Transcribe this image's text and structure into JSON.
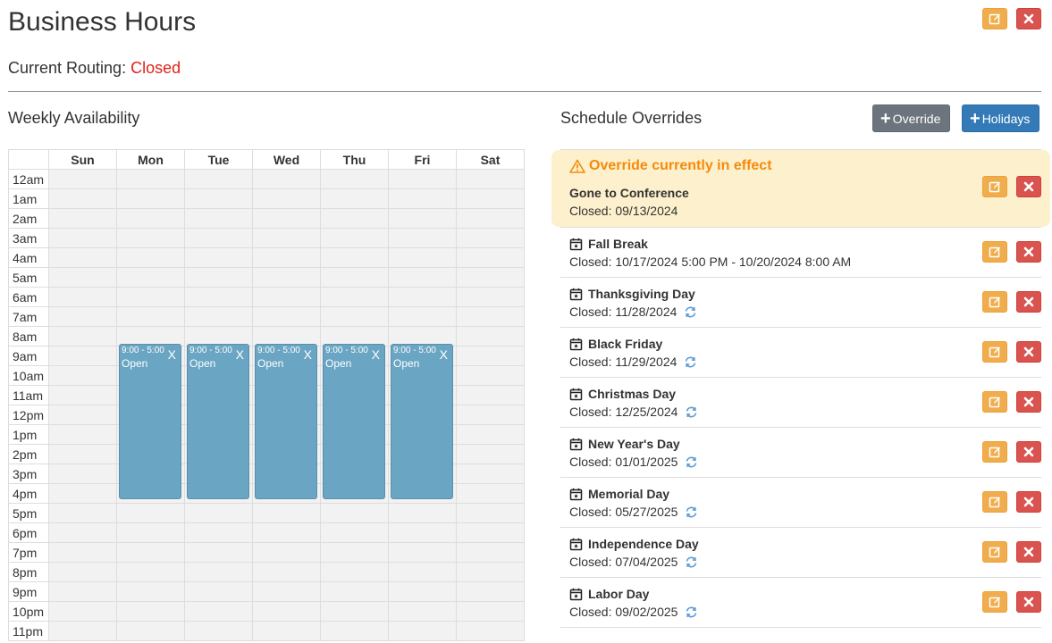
{
  "header": {
    "title": "Business Hours"
  },
  "routing": {
    "label": "Current Routing:",
    "status": "Closed"
  },
  "weekly": {
    "title": "Weekly Availability",
    "days": [
      "Sun",
      "Mon",
      "Tue",
      "Wed",
      "Thu",
      "Fri",
      "Sat"
    ],
    "hours": [
      "12am",
      "1am",
      "2am",
      "3am",
      "4am",
      "5am",
      "6am",
      "7am",
      "8am",
      "9am",
      "10am",
      "11am",
      "12pm",
      "1pm",
      "2pm",
      "3pm",
      "4pm",
      "5pm",
      "6pm",
      "7pm",
      "8pm",
      "9pm",
      "10pm",
      "11pm"
    ],
    "events": [
      {
        "day": "Mon",
        "time": "9:00 - 5:00",
        "label": "Open",
        "remove": "X"
      },
      {
        "day": "Tue",
        "time": "9:00 - 5:00",
        "label": "Open",
        "remove": "X"
      },
      {
        "day": "Wed",
        "time": "9:00 - 5:00",
        "label": "Open",
        "remove": "X"
      },
      {
        "day": "Thu",
        "time": "9:00 - 5:00",
        "label": "Open",
        "remove": "X"
      },
      {
        "day": "Fri",
        "time": "9:00 - 5:00",
        "label": "Open",
        "remove": "X"
      }
    ]
  },
  "overrides": {
    "title": "Schedule Overrides",
    "override_button": "Override",
    "holidays_button": "Holidays",
    "active": {
      "heading": "Override currently in effect",
      "name": "Gone to Conference",
      "detail": "Closed: 09/13/2024"
    },
    "items": [
      {
        "name": "Fall Break",
        "detail": "Closed: 10/17/2024 5:00 PM - 10/20/2024 8:00 AM",
        "recurring": false
      },
      {
        "name": "Thanksgiving Day",
        "detail": "Closed: 11/28/2024",
        "recurring": true
      },
      {
        "name": "Black Friday",
        "detail": "Closed: 11/29/2024",
        "recurring": true
      },
      {
        "name": "Christmas Day",
        "detail": "Closed: 12/25/2024",
        "recurring": true
      },
      {
        "name": "New Year's Day",
        "detail": "Closed: 01/01/2025",
        "recurring": true
      },
      {
        "name": "Memorial Day",
        "detail": "Closed: 05/27/2025",
        "recurring": true
      },
      {
        "name": "Independence Day",
        "detail": "Closed: 07/04/2025",
        "recurring": true
      },
      {
        "name": "Labor Day",
        "detail": "Closed: 09/02/2025",
        "recurring": true
      }
    ]
  },
  "colors": {
    "edit": "#f0ad4e",
    "delete": "#d9534f",
    "closed": "#e0201a",
    "event": "#6aa5c3",
    "alert_bg": "#fdf0cc",
    "alert_text": "#f58a0b"
  },
  "icons": {
    "edit": "pencil-square-icon",
    "delete": "x-icon",
    "warning": "warning-triangle-icon",
    "calendar": "calendar-star-icon",
    "recurring": "sync-icon",
    "plus": "plus-icon"
  }
}
